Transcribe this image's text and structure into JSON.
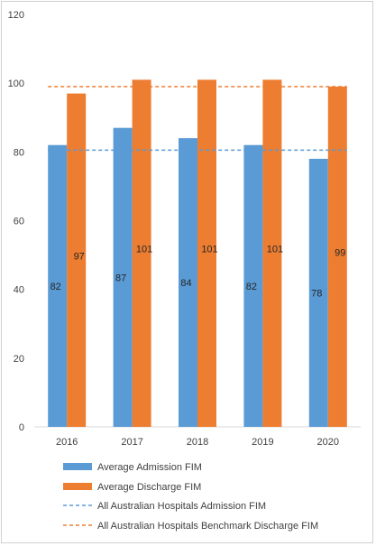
{
  "chart_data": {
    "type": "bar",
    "categories": [
      "2016",
      "2017",
      "2018",
      "2019",
      "2020"
    ],
    "series": [
      {
        "name": "Average Admission FIM",
        "values": [
          82,
          87,
          84,
          82,
          78
        ],
        "color": "#5B9BD5"
      },
      {
        "name": "Average Discharge FIM",
        "values": [
          97,
          101,
          101,
          101,
          99
        ],
        "color": "#ED7D31"
      }
    ],
    "benchmarks": [
      {
        "name": "All Australian Hospitals Admission FIM",
        "value": 80.5,
        "color": "#5B9BD5",
        "style": "dashed"
      },
      {
        "name": "All Australian Hospitals Benchmark Discharge FIM",
        "value": 99,
        "color": "#ED7D31",
        "style": "dashed"
      }
    ],
    "ylim": [
      0,
      120
    ],
    "yticks": [
      "0",
      "20",
      "40",
      "60",
      "80",
      "100",
      "120"
    ],
    "grid": false,
    "legend_position": "bottom",
    "title": "",
    "xlabel": "",
    "ylabel": ""
  }
}
